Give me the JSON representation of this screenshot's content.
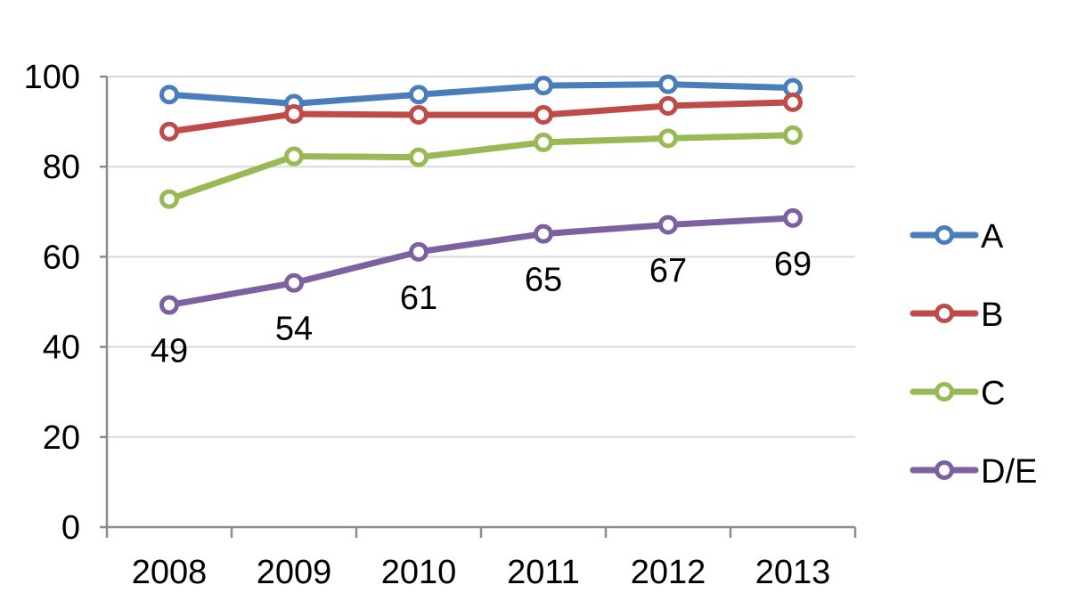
{
  "chart_data": {
    "type": "line",
    "categories": [
      "2008",
      "2009",
      "2010",
      "2011",
      "2012",
      "2013"
    ],
    "ylim": [
      0,
      100
    ],
    "yticks": [
      "0",
      "20",
      "40",
      "60",
      "80",
      "100"
    ],
    "grid": true,
    "legend_position": "right",
    "series": [
      {
        "name": "A",
        "color": "#4a7ebb",
        "values": [
          96,
          94,
          96,
          98,
          98.3,
          97.5
        ]
      },
      {
        "name": "B",
        "color": "#be4b48",
        "values": [
          87.8,
          91.7,
          91.5,
          91.5,
          93.5,
          94.3
        ]
      },
      {
        "name": "C",
        "color": "#98b954",
        "values": [
          72.8,
          82.3,
          82.1,
          85.4,
          86.3,
          87
        ]
      },
      {
        "name": "D/E",
        "color": "#7d60a0",
        "values": [
          49.3,
          54.2,
          61.1,
          65.1,
          67.1,
          68.6
        ],
        "data_labels": [
          "49",
          "54",
          "61",
          "65",
          "67",
          "69"
        ]
      }
    ]
  }
}
